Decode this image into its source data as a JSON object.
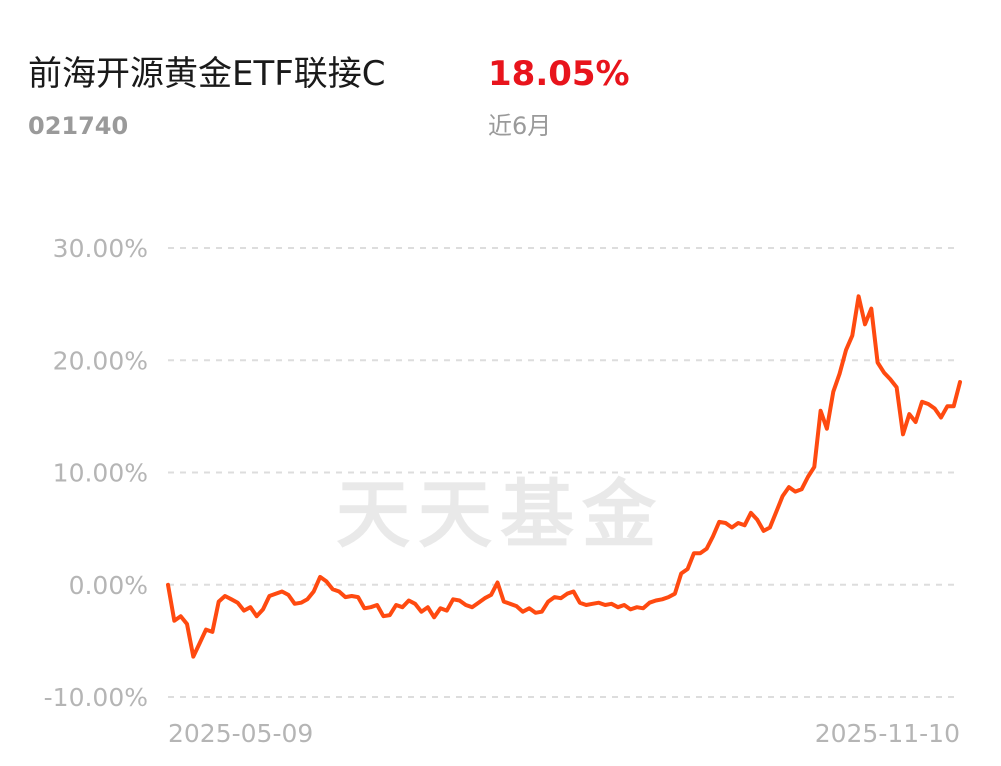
{
  "header": {
    "fund_name": "前海开源黄金ETF联接C",
    "fund_code": "021740",
    "return_value": "18.05%",
    "return_period": "近6月"
  },
  "watermark": "天天基金",
  "colors": {
    "line": "#ff4a10",
    "return_text": "#e8141c",
    "axis_text": "#b5b5b5",
    "grid": "#dddddd",
    "watermark": "#e9e9e9"
  },
  "chart_data": {
    "type": "line",
    "title": "",
    "xlabel": "",
    "ylabel": "",
    "ylim": [
      -10,
      30
    ],
    "y_ticks": [
      30,
      20,
      10,
      0,
      -10
    ],
    "y_tick_labels": [
      "30.00%",
      "20.00%",
      "10.00%",
      "0.00%",
      "-10.00%"
    ],
    "x_tick_labels": [
      "2025-05-09",
      "2025-11-10"
    ],
    "grid": true,
    "legend": "none",
    "series": [
      {
        "values": [
          0.0,
          -3.2,
          -2.8,
          -3.5,
          -6.4,
          -5.2,
          -4.0,
          -4.2,
          -1.5,
          -1.0,
          -1.3,
          -1.6,
          -2.3,
          -2.0,
          -2.8,
          -2.2,
          -1.0,
          -0.8,
          -0.6,
          -0.9,
          -1.7,
          -1.6,
          -1.3,
          -0.6,
          0.7,
          0.3,
          -0.4,
          -0.6,
          -1.1,
          -1.0,
          -1.1,
          -2.1,
          -2.0,
          -1.8,
          -2.8,
          -2.7,
          -1.8,
          -2.0,
          -1.4,
          -1.7,
          -2.4,
          -2.0,
          -2.9,
          -2.1,
          -2.3,
          -1.3,
          -1.4,
          -1.8,
          -2.0,
          -1.6,
          -1.2,
          -0.9,
          0.2,
          -1.5,
          -1.7,
          -1.9,
          -2.4,
          -2.1,
          -2.5,
          -2.4,
          -1.5,
          -1.1,
          -1.2,
          -0.8,
          -0.6,
          -1.6,
          -1.8,
          -1.7,
          -1.6,
          -1.8,
          -1.7,
          -2.0,
          -1.8,
          -2.2,
          -2.0,
          -2.1,
          -1.6,
          -1.4,
          -1.3,
          -1.1,
          -0.8,
          1.0,
          1.4,
          2.8,
          2.8,
          3.2,
          4.3,
          5.6,
          5.5,
          5.1,
          5.5,
          5.3,
          6.4,
          5.8,
          4.8,
          5.1,
          6.5,
          7.9,
          8.7,
          8.3,
          8.5,
          9.6,
          10.5,
          15.5,
          13.9,
          17.2,
          18.8,
          20.9,
          22.2,
          25.7,
          23.2,
          24.6,
          19.8,
          18.9,
          18.3,
          17.6,
          13.4,
          15.2,
          14.5,
          16.3,
          16.1,
          15.7,
          14.9,
          15.9,
          15.9,
          18.05
        ]
      }
    ]
  }
}
